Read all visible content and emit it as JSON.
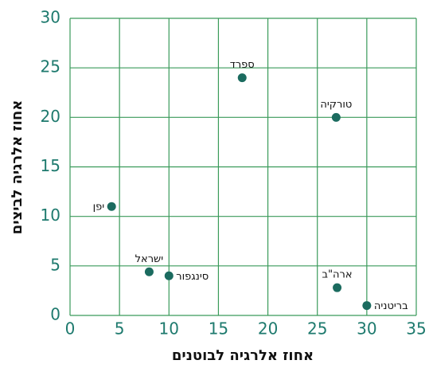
{
  "chart_data": {
    "type": "scatter",
    "x_label": "אחוז אלרגיה לבוטנים",
    "y_label": "אחוז אלרגיה לביצים",
    "points": [
      {
        "label": "יפן",
        "x": 4.2,
        "y": 11
      },
      {
        "label": "ישראל",
        "x": 8,
        "y": 4.4
      },
      {
        "label": "סינגפור",
        "x": 10,
        "y": 4
      },
      {
        "label": "ספרד",
        "x": 17.4,
        "y": 24
      },
      {
        "label": "טורקיה",
        "x": 26.9,
        "y": 20
      },
      {
        "label": "ארה\"ב",
        "x": 27,
        "y": 2.8
      },
      {
        "label": "בריטניה",
        "x": 30,
        "y": 1
      }
    ],
    "color": "#1b6b5f",
    "xlim": [
      0,
      35
    ],
    "xticks": [
      0,
      5,
      10,
      15,
      20,
      25,
      30,
      35
    ],
    "ylim": [
      0,
      30
    ],
    "yticks": [
      0,
      5,
      10,
      15,
      20,
      25,
      30
    ],
    "grid": true
  }
}
